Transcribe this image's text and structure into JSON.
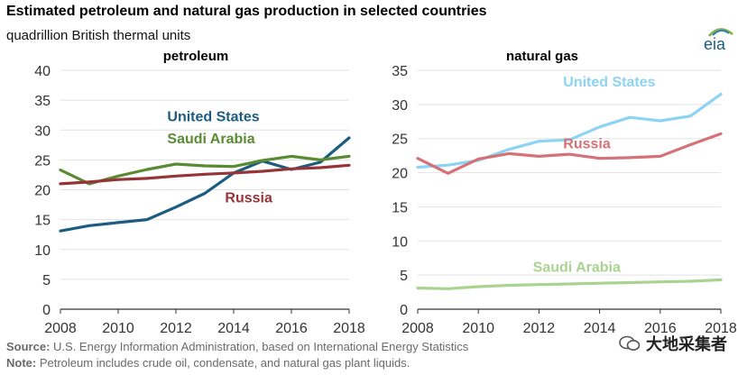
{
  "title": "Estimated petroleum and natural gas production in selected countries",
  "subtitle": "quadrillion British thermal units",
  "source_label": "Source:",
  "source_text": " U.S. Energy Information Administration, based on International Energy Statistics",
  "note_label": "Note:",
  "note_text": " Petroleum includes crude oil, condensate, and natural gas plant liquids.",
  "logo_text": "eia",
  "watermark_text": "大地采集者",
  "chart_data": [
    {
      "type": "line",
      "title": "petroleum",
      "x": [
        2008,
        2009,
        2010,
        2011,
        2012,
        2013,
        2014,
        2015,
        2016,
        2017,
        2018
      ],
      "xticks": [
        2008,
        2010,
        2012,
        2014,
        2016,
        2018
      ],
      "ylim": [
        0,
        40
      ],
      "yticks": [
        0,
        5,
        10,
        15,
        20,
        25,
        30,
        35,
        40
      ],
      "grid": true,
      "series": [
        {
          "name": "United States",
          "color": "#1b5c80",
          "values": [
            13.1,
            14.0,
            14.5,
            15.0,
            17.1,
            19.4,
            22.8,
            24.8,
            23.4,
            24.6,
            28.7
          ],
          "label_anchor": [
            2011.7,
            31.5
          ]
        },
        {
          "name": "Saudi Arabia",
          "color": "#5a8a32",
          "values": [
            23.3,
            21.0,
            22.3,
            23.4,
            24.3,
            24.0,
            23.9,
            24.9,
            25.6,
            25.0,
            25.6
          ],
          "label_anchor": [
            2011.7,
            27.8
          ]
        },
        {
          "name": "Russia",
          "color": "#963437",
          "values": [
            21.0,
            21.3,
            21.7,
            21.9,
            22.3,
            22.6,
            22.8,
            23.1,
            23.5,
            23.7,
            24.1
          ],
          "label_anchor": [
            2013.7,
            17.9
          ]
        }
      ]
    },
    {
      "type": "line",
      "title": "natural gas",
      "x": [
        2008,
        2009,
        2010,
        2011,
        2012,
        2013,
        2014,
        2015,
        2016,
        2017,
        2018
      ],
      "xticks": [
        2008,
        2010,
        2012,
        2014,
        2016,
        2018
      ],
      "ylim": [
        0,
        35
      ],
      "yticks": [
        0,
        5,
        10,
        15,
        20,
        25,
        30,
        35
      ],
      "grid": true,
      "series": [
        {
          "name": "United States",
          "color": "#8dd3f4",
          "values": [
            20.8,
            21.1,
            21.8,
            23.4,
            24.6,
            24.8,
            26.7,
            28.1,
            27.6,
            28.3,
            31.5
          ],
          "label_anchor": [
            2012.8,
            32.6
          ]
        },
        {
          "name": "Russia",
          "color": "#d57178",
          "values": [
            22.1,
            19.9,
            22.0,
            22.8,
            22.4,
            22.7,
            22.1,
            22.2,
            22.4,
            24.1,
            25.7
          ],
          "label_anchor": [
            2012.8,
            23.6
          ]
        },
        {
          "name": "Saudi Arabia",
          "color": "#a9d490",
          "values": [
            3.1,
            3.0,
            3.3,
            3.5,
            3.6,
            3.7,
            3.8,
            3.9,
            4.0,
            4.1,
            4.3
          ],
          "label_anchor": [
            2011.8,
            5.5
          ]
        }
      ]
    }
  ]
}
